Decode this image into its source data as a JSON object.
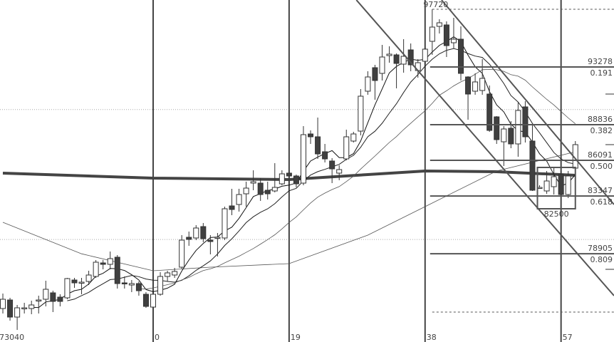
{
  "chart_data": {
    "type": "candlestick",
    "xlim": [
      -21.4,
      64.4
    ],
    "ylim": [
      72110,
      98433
    ],
    "grid": "horizontal dotted",
    "colors": {
      "up_fill": "#ffffff",
      "down_fill": "#404040",
      "outline": "#333333",
      "drawing": "#555555"
    },
    "x_tick_labels": [
      {
        "bar": -20,
        "label": "73040"
      },
      {
        "bar": 0,
        "label": "0"
      },
      {
        "bar": 19,
        "label": "19"
      },
      {
        "bar": 38,
        "label": "38"
      },
      {
        "bar": 57,
        "label": "57"
      }
    ],
    "vertical_markers": [
      0,
      19,
      38,
      57
    ],
    "gridlines": [
      90000,
      80000
    ],
    "candles_start_bar": -21,
    "candles_ohlc": [
      [
        74687,
        75839,
        74303,
        75400
      ],
      [
        75345,
        75510,
        73755,
        74029
      ],
      [
        74029,
        74961,
        73040,
        74742
      ],
      [
        74687,
        75126,
        74303,
        74742
      ],
      [
        74687,
        75290,
        74248,
        74961
      ],
      [
        75290,
        75675,
        74303,
        75345
      ],
      [
        75400,
        76826,
        74852,
        76168
      ],
      [
        75894,
        76058,
        74413,
        75235
      ],
      [
        75565,
        75784,
        74852,
        75235
      ],
      [
        75510,
        77046,
        75400,
        76991
      ],
      [
        76881,
        77046,
        76278,
        76662
      ],
      [
        76662,
        77046,
        75784,
        76717
      ],
      [
        76771,
        77594,
        76497,
        77265
      ],
      [
        77155,
        78417,
        77046,
        78252
      ],
      [
        78197,
        78417,
        77704,
        78088
      ],
      [
        78088,
        79074,
        77704,
        78527
      ],
      [
        78636,
        78800,
        76223,
        76607
      ],
      [
        76662,
        77155,
        76223,
        76607
      ],
      [
        76497,
        76881,
        75949,
        76607
      ],
      [
        76607,
        76771,
        75675,
        76058
      ],
      [
        75784,
        75949,
        74742,
        74852
      ],
      [
        74797,
        75949,
        74687,
        75784
      ],
      [
        75784,
        77484,
        75675,
        77155
      ],
      [
        77155,
        77594,
        76771,
        77430
      ],
      [
        77265,
        77813,
        77046,
        77539
      ],
      [
        77868,
        80336,
        77758,
        79952
      ],
      [
        80171,
        80610,
        79513,
        80007
      ],
      [
        80116,
        81103,
        79952,
        80884
      ],
      [
        80994,
        81268,
        79787,
        80062
      ],
      [
        79952,
        80336,
        78855,
        79842
      ],
      [
        80116,
        80500,
        78691,
        80171
      ],
      [
        80116,
        82530,
        79952,
        82365
      ],
      [
        82585,
        83900,
        81871,
        82310
      ],
      [
        82694,
        83900,
        82146,
        83461
      ],
      [
        83517,
        84449,
        82530,
        83955
      ],
      [
        84339,
        85326,
        83791,
        84449
      ],
      [
        84339,
        84723,
        82968,
        83461
      ],
      [
        83791,
        84449,
        83078,
        83517
      ],
      [
        83736,
        85875,
        83626,
        84010
      ],
      [
        84284,
        85326,
        84175,
        85052
      ],
      [
        85107,
        85326,
        84284,
        84888
      ],
      [
        84888,
        84997,
        84010,
        84284
      ],
      [
        84339,
        88726,
        84175,
        88068
      ],
      [
        88123,
        88397,
        87356,
        87904
      ],
      [
        87904,
        89384,
        86204,
        86588
      ],
      [
        86752,
        87356,
        85930,
        86204
      ],
      [
        86039,
        86259,
        84339,
        85436
      ],
      [
        85107,
        85710,
        84559,
        85381
      ],
      [
        86204,
        88452,
        86094,
        87904
      ],
      [
        87575,
        88288,
        87465,
        88123
      ],
      [
        88342,
        91578,
        88013,
        91030
      ],
      [
        91414,
        92949,
        91139,
        92510
      ],
      [
        93223,
        93443,
        90756,
        92236
      ],
      [
        92785,
        94978,
        92236,
        94046
      ],
      [
        94155,
        94868,
        93607,
        94265
      ],
      [
        94210,
        94320,
        91633,
        93552
      ],
      [
        93497,
        95417,
        92839,
        94101
      ],
      [
        94594,
        95088,
        92949,
        93443
      ],
      [
        93004,
        93881,
        92455,
        93607
      ],
      [
        93717,
        94759,
        93497,
        94649
      ],
      [
        95252,
        97720,
        94210,
        96349
      ],
      [
        96404,
        96952,
        95856,
        96678
      ],
      [
        96514,
        96788,
        94046,
        94923
      ],
      [
        95143,
        97062,
        94704,
        95417
      ],
      [
        95417,
        96404,
        92236,
        92785
      ],
      [
        92510,
        92565,
        89219,
        91194
      ],
      [
        91414,
        92785,
        91139,
        92127
      ],
      [
        91468,
        93881,
        91139,
        92401
      ],
      [
        91194,
        91852,
        88288,
        88397
      ],
      [
        89439,
        89494,
        87356,
        87685
      ],
      [
        87520,
        88726,
        85655,
        88507
      ],
      [
        88562,
        89110,
        87026,
        87356
      ],
      [
        87356,
        90591,
        86368,
        89933
      ],
      [
        90207,
        90646,
        87465,
        87904
      ],
      [
        87575,
        88836,
        83736,
        83791
      ],
      [
        84010,
        84175,
        84010,
        84010
      ],
      [
        83736,
        85272,
        83517,
        84504
      ],
      [
        84065,
        85491,
        83461,
        84833
      ],
      [
        84997,
        85272,
        83352,
        83461
      ],
      [
        83461,
        85272,
        83188,
        84888
      ],
      [
        85491,
        87575,
        85272,
        87301
      ]
    ],
    "moving_averages": {
      "short_periods": [
        5,
        10,
        20
      ],
      "mid_line": [
        [
          -21,
          81323
        ],
        [
          -10,
          78900
        ],
        [
          0,
          77594
        ],
        [
          8,
          77868
        ],
        [
          19,
          78143
        ],
        [
          30,
          80336
        ],
        [
          38,
          82530
        ],
        [
          48,
          85272
        ],
        [
          59,
          86752
        ]
      ],
      "long_line_thick": [
        [
          -21,
          85107
        ],
        [
          0,
          84723
        ],
        [
          19,
          84614
        ],
        [
          30,
          85000
        ],
        [
          38,
          85272
        ],
        [
          48,
          85217
        ],
        [
          59,
          84943
        ]
      ]
    },
    "fibonacci": {
      "start_bar": 38.7,
      "levels": [
        {
          "price": 93278,
          "price_label": "93278",
          "ratio_label": "0.191"
        },
        {
          "price": 88836,
          "price_label": "88836",
          "ratio_label": "0.382"
        },
        {
          "price": 86091,
          "price_label": "86091",
          "ratio_label": "0.500"
        },
        {
          "price": 83347,
          "price_label": "83347",
          "ratio_label": "0.618"
        },
        {
          "price": 78905,
          "price_label": "78905",
          "ratio_label": "0.809"
        }
      ]
    },
    "high_marker": {
      "bar": 39,
      "price": 97720,
      "label": "97720"
    },
    "low_dashed_price": 74413,
    "channel_lines": [
      [
        [
          28.4,
          98433
        ],
        [
          64.4,
          75675
        ]
      ],
      [
        [
          40.3,
          98433
        ],
        [
          64.4,
          82694
        ]
      ]
    ],
    "box": {
      "bar_from": 53.7,
      "bar_to": 59,
      "price_top": 85546,
      "price_bottom": 82365,
      "label": "82500"
    }
  }
}
